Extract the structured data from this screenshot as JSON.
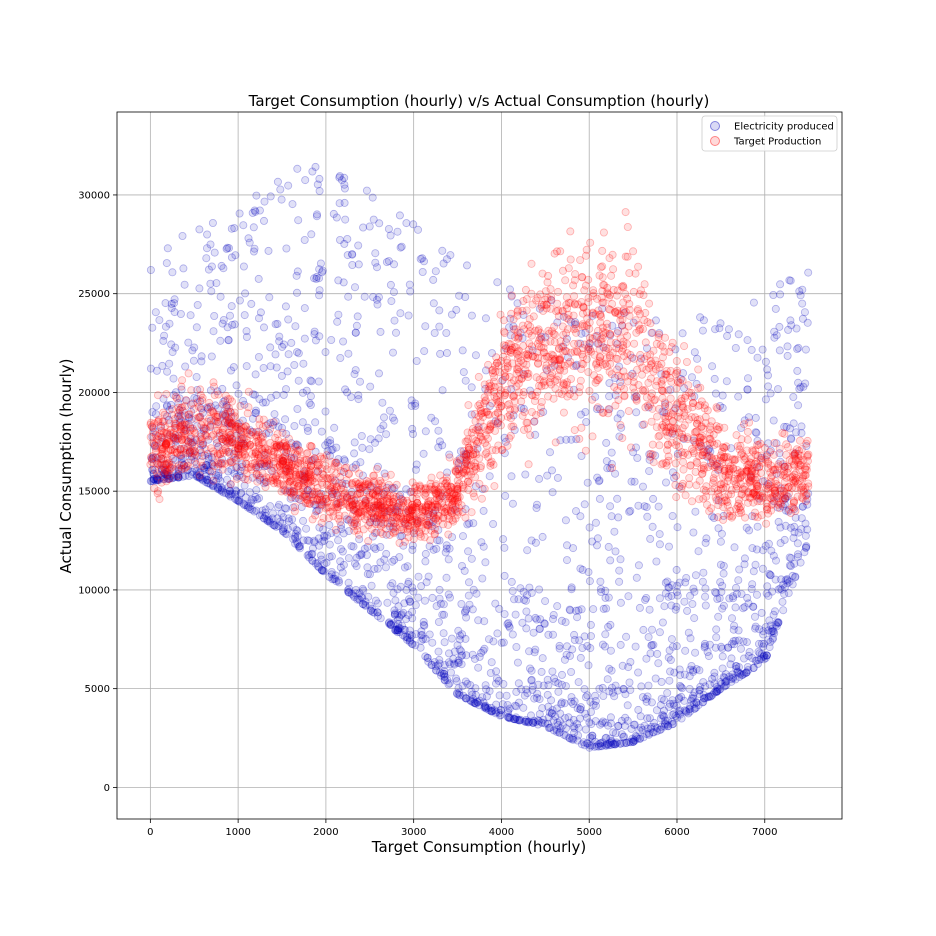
{
  "chart_data": {
    "type": "scatter",
    "title": "Target Consumption (hourly) v/s Actual Consumption (hourly)",
    "xlabel": "Target Consumption (hourly)",
    "ylabel": "Actual Consumption (hourly)",
    "xlim": [
      -380,
      7880
    ],
    "ylim": [
      -1600,
      34200
    ],
    "x_ticks": [
      0,
      1000,
      2000,
      3000,
      4000,
      5000,
      6000,
      7000
    ],
    "y_ticks": [
      0,
      5000,
      10000,
      15000,
      20000,
      25000,
      30000
    ],
    "x_tick_labels": [
      "0",
      "1000",
      "2000",
      "3000",
      "4000",
      "5000",
      "6000",
      "7000"
    ],
    "y_tick_labels": [
      "0",
      "5000",
      "10000",
      "15000",
      "20000",
      "25000",
      "30000"
    ],
    "grid": true,
    "legend_position": "top-right",
    "marker_alpha": 0.12,
    "series": [
      {
        "name": "Electricity produced",
        "color": "#0000bb",
        "envelope": {
          "x": [
            0,
            500,
            1000,
            1500,
            2000,
            2500,
            3000,
            3500,
            4000,
            4500,
            5000,
            5500,
            6000,
            6500,
            7000,
            7500
          ],
          "low": [
            15500,
            15800,
            14500,
            13000,
            10800,
            9000,
            7200,
            4700,
            3600,
            3100,
            2000,
            2300,
            3300,
            5000,
            6400,
            12500
          ],
          "high": [
            27000,
            28500,
            29500,
            31500,
            31500,
            31500,
            29800,
            27000,
            25500,
            25000,
            24500,
            24500,
            23500,
            24500,
            25500,
            27000
          ]
        }
      },
      {
        "name": "Target Production",
        "color": "#ff0000",
        "envelope": {
          "x": [
            0,
            500,
            1000,
            1500,
            2000,
            2500,
            3000,
            3500,
            4000,
            4500,
            5000,
            5500,
            6000,
            6500,
            7000,
            7500
          ],
          "low": [
            14000,
            14500,
            14800,
            13800,
            12500,
            12000,
            11800,
            12500,
            15000,
            16500,
            16000,
            15500,
            13000,
            12500,
            12500,
            13500
          ],
          "high": [
            20000,
            21500,
            20500,
            19000,
            17500,
            16500,
            16000,
            17500,
            25500,
            28500,
            30500,
            30000,
            24500,
            19500,
            18500,
            18500
          ]
        }
      }
    ]
  }
}
